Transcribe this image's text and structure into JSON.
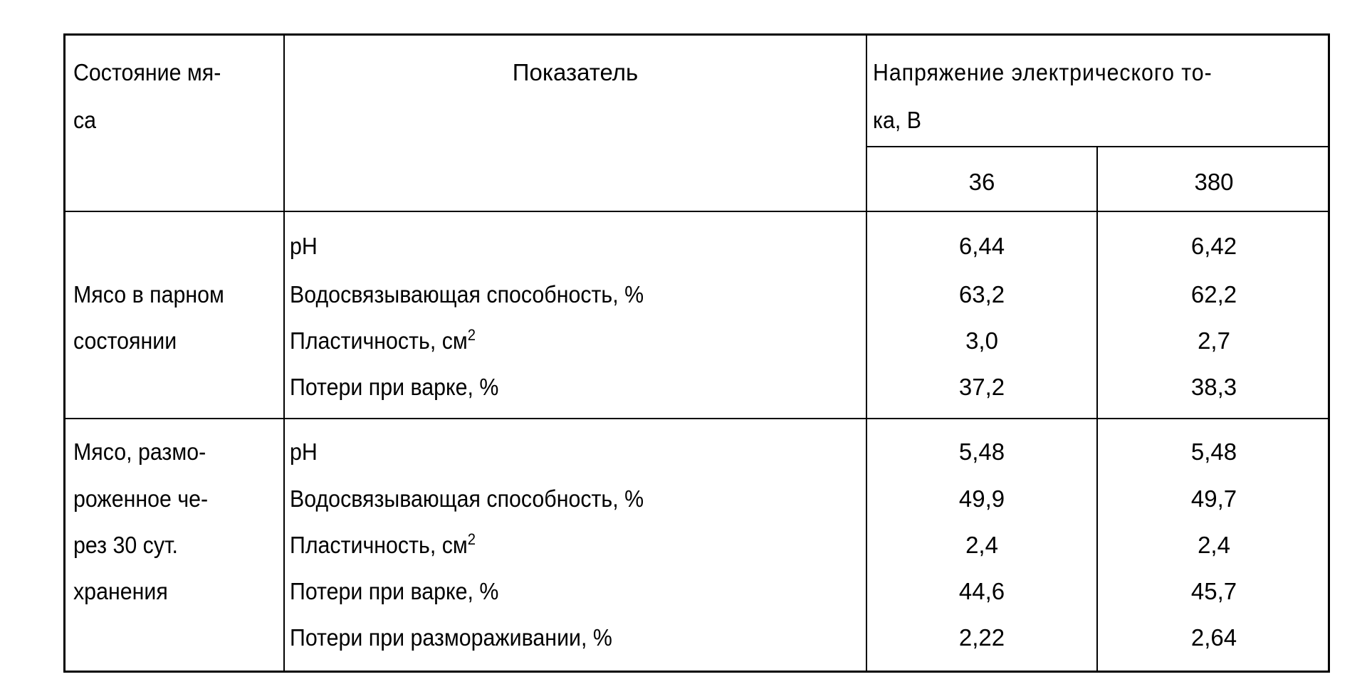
{
  "header": {
    "state_label_lines": [
      "Состояние мя-",
      "са"
    ],
    "indicator_label": "Показатель",
    "voltage_label_lines": [
      "Напряжение электрического то-",
      "ка, В"
    ],
    "voltages": [
      "36",
      "380"
    ]
  },
  "groups": [
    {
      "state_lines": [
        "Мясо в парном",
        "состоянии"
      ],
      "rows": [
        {
          "indicator": "pH",
          "sup": "",
          "v36": "6,44",
          "v380": "6,42"
        },
        {
          "indicator": "Водосвязывающая способность, %",
          "sup": "",
          "v36": "63,2",
          "v380": "62,2"
        },
        {
          "indicator": "Пластичность, см",
          "sup": "2",
          "v36": "3,0",
          "v380": "2,7"
        },
        {
          "indicator": "Потери при варке, %",
          "sup": "",
          "v36": "37,2",
          "v380": "38,3"
        }
      ]
    },
    {
      "state_lines": [
        "Мясо, размо-",
        "роженное че-",
        "рез 30 сут.",
        "хранения"
      ],
      "rows": [
        {
          "indicator": "pH",
          "sup": "",
          "v36": "5,48",
          "v380": "5,48"
        },
        {
          "indicator": "Водосвязывающая способность, %",
          "sup": "",
          "v36": "49,9",
          "v380": "49,7"
        },
        {
          "indicator": "Пластичность, см",
          "sup": "2",
          "v36": "2,4",
          "v380": "2,4"
        },
        {
          "indicator": "Потери при варке, %",
          "sup": "",
          "v36": "44,6",
          "v380": "45,7"
        },
        {
          "indicator": "Потери при размораживании, %",
          "sup": "",
          "v36": "2,22",
          "v380": "2,64"
        }
      ]
    }
  ]
}
